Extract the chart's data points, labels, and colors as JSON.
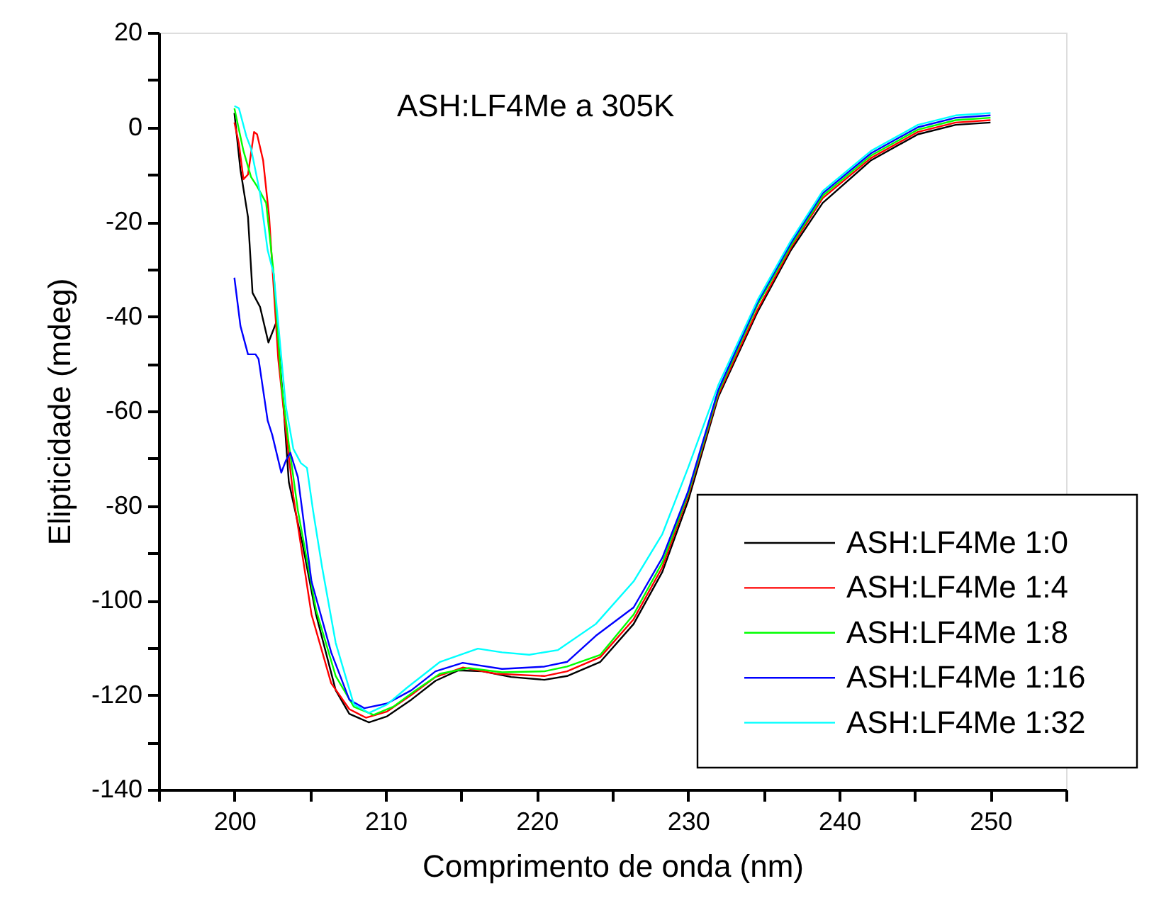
{
  "chart_data": {
    "type": "line",
    "xlabel": "Comprimento de onda (nm)",
    "ylabel": "Elipticidade (mdeg)",
    "annotations": [
      "ASH:LF4Me a 305K"
    ],
    "xlim": [
      195,
      255
    ],
    "ylim": [
      -140,
      20
    ],
    "xticks": [
      {
        "value": 195,
        "label": null
      },
      200,
      {
        "value": 205,
        "label": null
      },
      210,
      {
        "value": 215,
        "label": null
      },
      220,
      {
        "value": 225,
        "label": null
      },
      230,
      {
        "value": 235,
        "label": null
      },
      240,
      {
        "value": 245,
        "label": null
      },
      250,
      {
        "value": 255,
        "label": null
      }
    ],
    "yticks": [
      -140,
      {
        "value": -130,
        "label": null
      },
      -120,
      {
        "value": -110,
        "label": null
      },
      -100,
      {
        "value": -90,
        "label": null
      },
      -80,
      {
        "value": -70,
        "label": null
      },
      -60,
      {
        "value": -50,
        "label": null
      },
      -40,
      {
        "value": -30,
        "label": null
      },
      -20,
      {
        "value": -10,
        "label": null
      },
      0,
      {
        "value": 10,
        "label": null
      },
      20
    ],
    "grid": false,
    "legend": "bottom right",
    "marker": "none",
    "line_style": "solid",
    "series": [
      {
        "name": "ASH:LF4Me 1:0",
        "color": "#000000",
        "x": [
          200,
          200.4,
          200.9,
          201.2,
          201.7,
          202.25,
          202.8,
          203.25,
          203.6,
          204.5,
          205.4,
          206.7,
          207.6,
          208.9,
          210.1,
          211.7,
          213.3,
          214.8,
          216.4,
          218.3,
          220.5,
          222,
          224.2,
          226.4,
          228.3,
          230,
          232,
          234.6,
          236.8,
          238.9,
          242.1,
          245.2,
          247.7,
          250
        ],
        "values": [
          3,
          -9,
          -19,
          -35,
          -38,
          -45.5,
          -41,
          -59,
          -75,
          -88,
          -103,
          -119,
          -124,
          -125.8,
          -124.5,
          -121,
          -117,
          -114.8,
          -115,
          -116.2,
          -116.8,
          -116,
          -113,
          -105,
          -94,
          -79,
          -57,
          -39,
          -26,
          -16,
          -7,
          -1.5,
          0.5,
          1
        ]
      },
      {
        "name": "ASH:LF4Me 1:4",
        "color": "#ff0000",
        "x": [
          200,
          200.3,
          200.6,
          200.9,
          201.3,
          201.5,
          201.9,
          202.3,
          202.9,
          203.4,
          203.9,
          205.1,
          206.4,
          207.6,
          208.7,
          210.1,
          211.7,
          213.3,
          215.1,
          217.3,
          220.5,
          222,
          224.2,
          226.4,
          228.3,
          230,
          232,
          234.6,
          236.8,
          238.9,
          242.1,
          245.2,
          247.7,
          250
        ],
        "values": [
          1,
          -3.5,
          -11,
          -10,
          -1,
          -1.5,
          -7,
          -19,
          -49,
          -64,
          -78,
          -103,
          -117.5,
          -123,
          -124.8,
          -123.5,
          -120,
          -116.2,
          -114.2,
          -115.5,
          -116,
          -115,
          -112,
          -104,
          -93,
          -78,
          -56.5,
          -38.5,
          -25.5,
          -15,
          -6.5,
          -1,
          1,
          1.5
        ]
      },
      {
        "name": "ASH:LF4Me 1:8",
        "color": "#00ff00",
        "x": [
          200,
          200.6,
          201.1,
          201.5,
          202.1,
          202.6,
          203.1,
          203.6,
          204.2,
          205.4,
          206.7,
          207.9,
          209.2,
          210.5,
          212,
          213.6,
          215.5,
          217.7,
          220.5,
          222,
          224.2,
          226.4,
          228.3,
          230,
          232,
          234.6,
          236.8,
          238.9,
          242.1,
          245.2,
          247.7,
          250
        ],
        "values": [
          4,
          -5,
          -10.5,
          -12.5,
          -16,
          -31,
          -54,
          -67,
          -81,
          -102,
          -116,
          -122.5,
          -124.2,
          -122.5,
          -119,
          -115.5,
          -114.3,
          -115.2,
          -115,
          -114,
          -111.5,
          -103,
          -92,
          -77.5,
          -56,
          -37.5,
          -25,
          -14.5,
          -6,
          -0.5,
          1.5,
          2
        ]
      },
      {
        "name": "ASH:LF4Me 1:16",
        "color": "#0000ff",
        "x": [
          200,
          200.4,
          200.9,
          201.4,
          201.6,
          202.2,
          202.5,
          203.1,
          203.4,
          203.7,
          204.2,
          205.1,
          206.4,
          207.6,
          208.6,
          210.1,
          211.7,
          213.3,
          215.1,
          217.7,
          220.5,
          222,
          223.9,
          226.4,
          228.3,
          230,
          232,
          234.6,
          236.8,
          238.9,
          242.1,
          245.2,
          247.7,
          250
        ],
        "values": [
          -31.8,
          -42,
          -48,
          -48,
          -49,
          -62,
          -65,
          -73,
          -70.5,
          -68.8,
          -74,
          -96,
          -111,
          -121,
          -122.8,
          -121.8,
          -119,
          -115,
          -113.2,
          -114.5,
          -114,
          -113,
          -107.5,
          -101.5,
          -91,
          -77,
          -55.5,
          -37,
          -24.5,
          -14,
          -5.5,
          0,
          2,
          2.5
        ]
      },
      {
        "name": "ASH:LF4Me 1:32",
        "color": "#00ffff",
        "x": [
          200,
          200.3,
          200.8,
          201.1,
          201.7,
          202.2,
          202.6,
          203.4,
          203.9,
          204.4,
          204.8,
          205.2,
          205.8,
          206.7,
          207.9,
          208.9,
          210.1,
          211.4,
          213.6,
          216.1,
          217.7,
          219.5,
          221.4,
          223.9,
          226.4,
          228.3,
          230,
          232,
          234.6,
          236.8,
          238.9,
          242.1,
          245.2,
          247.7,
          250
        ],
        "values": [
          4.5,
          4,
          -2,
          -4.5,
          -14,
          -26,
          -31,
          -59,
          -68,
          -71,
          -72,
          -81,
          -93,
          -109,
          -122,
          -123.8,
          -122,
          -118.5,
          -113,
          -110.2,
          -111,
          -111.5,
          -110.5,
          -105,
          -96,
          -86,
          -72,
          -54.5,
          -36.5,
          -24,
          -13.5,
          -5,
          0.5,
          2.5,
          3
        ]
      }
    ]
  }
}
